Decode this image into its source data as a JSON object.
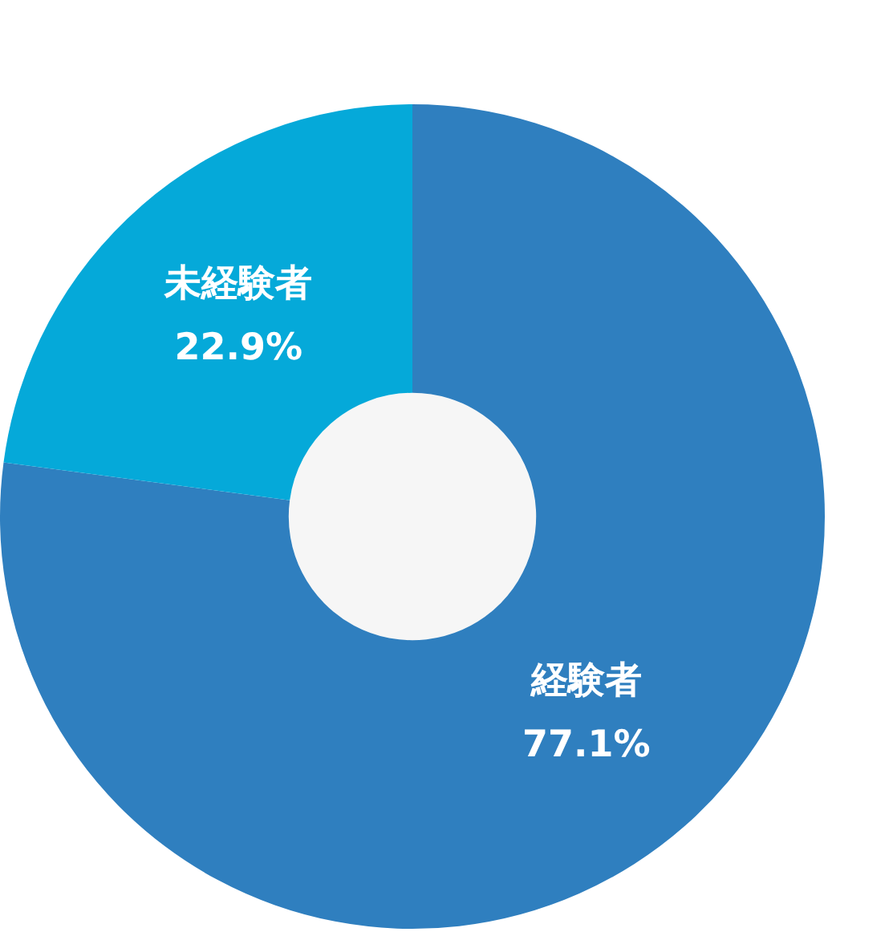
{
  "chart_data": {
    "type": "donut",
    "categories": [
      "経験者",
      "未経験者"
    ],
    "values": [
      77.1,
      22.9
    ],
    "colors": [
      "#2f7fbf",
      "#05a9d9"
    ],
    "value_labels": [
      "77.1%",
      "22.9%"
    ],
    "legend": false
  }
}
